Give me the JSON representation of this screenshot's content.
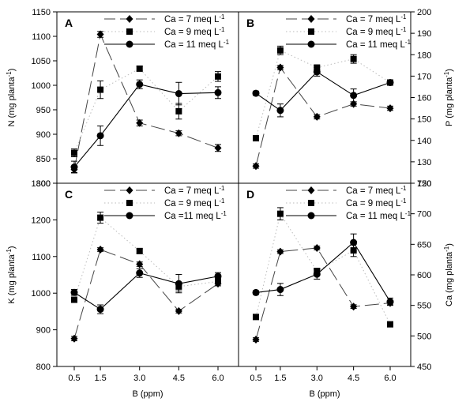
{
  "chart_data": [
    {
      "type": "line",
      "panel_label": "A",
      "ylabel": "N (mg planta-1)",
      "ylabel_parts": [
        "N (mg planta",
        "-1",
        ")"
      ],
      "ylim": [
        800,
        1150
      ],
      "yticks": [
        800,
        850,
        900,
        950,
        1000,
        1050,
        1100,
        1150
      ],
      "x": [
        0.5,
        1.5,
        3.0,
        4.5,
        6.0
      ],
      "series": [
        {
          "name": "Ca = 7 meq L-1",
          "name_parts": [
            "Ca = 7 meq L",
            "-1"
          ],
          "values": [
            828,
            1104,
            923,
            902,
            872
          ],
          "errors": [
            6,
            6,
            6,
            5,
            7
          ]
        },
        {
          "name": "Ca = 9 meq L-1",
          "name_parts": [
            "Ca = 9 meq L",
            "-1"
          ],
          "values": [
            862,
            991,
            1034,
            947,
            1018
          ],
          "errors": [
            8,
            18,
            5,
            16,
            10
          ]
        },
        {
          "name": "Ca = 11 meq L-1",
          "name_parts": [
            "Ca = 11 meq L",
            "-1"
          ],
          "values": [
            833,
            897,
            1002,
            983,
            985
          ],
          "errors": [
            12,
            20,
            9,
            23,
            12
          ]
        }
      ]
    },
    {
      "type": "line",
      "panel_label": "B",
      "ylabel": "P (mg planta-1)",
      "ylabel_parts": [
        "P (mg planta",
        "-1",
        ")"
      ],
      "ylim": [
        120,
        200
      ],
      "yticks": [
        120,
        130,
        140,
        150,
        160,
        170,
        180,
        190,
        200
      ],
      "x": [
        0.5,
        1.5,
        3.0,
        4.5,
        6.0
      ],
      "series": [
        {
          "name": "Ca = 7 meq L-1",
          "name_parts": [
            "Ca = 7 meq L",
            "-1"
          ],
          "values": [
            128,
            174,
            151,
            157,
            155
          ],
          "errors": [
            1,
            1,
            1,
            1,
            1
          ]
        },
        {
          "name": "Ca = 9 meq L-1",
          "name_parts": [
            "Ca = 9 meq L",
            "-1"
          ],
          "values": [
            141,
            182,
            174,
            178,
            167
          ],
          "errors": [
            1,
            2,
            1,
            2,
            1
          ]
        },
        {
          "name": "Ca = 11 meq L-1",
          "name_parts": [
            "Ca = 11 meq L",
            "-1"
          ],
          "values": [
            162,
            154,
            172,
            161,
            167
          ],
          "errors": [
            1,
            3,
            2,
            3,
            1
          ]
        }
      ]
    },
    {
      "type": "line",
      "panel_label": "C",
      "ylabel": "K (mg planta-1)",
      "ylabel_parts": [
        "K (mg planta",
        "-1",
        ")"
      ],
      "ylim": [
        800,
        1300
      ],
      "yticks": [
        800,
        900,
        1000,
        1100,
        1200,
        1300
      ],
      "x": [
        0.5,
        1.5,
        3.0,
        4.5,
        6.0
      ],
      "series": [
        {
          "name": "Ca = 7 meq L-1",
          "name_parts": [
            "Ca = 7 meq L",
            "-1"
          ],
          "values": [
            876,
            1119,
            1079,
            951,
            1026
          ],
          "errors": [
            6,
            5,
            6,
            5,
            6
          ]
        },
        {
          "name": "Ca = 9 meq L-1",
          "name_parts": [
            "Ca = 9 meq L",
            "-1"
          ],
          "values": [
            982,
            1206,
            1115,
            1018,
            1032
          ],
          "errors": [
            6,
            15,
            6,
            12,
            6
          ]
        },
        {
          "name": "Ca =11 meq L-1",
          "name_parts": [
            "Ca =11 meq L",
            "-1"
          ],
          "values": [
            1002,
            956,
            1055,
            1026,
            1046
          ],
          "errors": [
            8,
            12,
            12,
            25,
            10
          ]
        }
      ]
    },
    {
      "type": "line",
      "panel_label": "D",
      "ylabel": "Ca (mg planta-1)",
      "ylabel_parts": [
        "Ca (mg planta",
        "-1",
        ")"
      ],
      "ylim": [
        450,
        750
      ],
      "yticks": [
        450,
        500,
        550,
        600,
        650,
        700,
        750
      ],
      "x": [
        0.5,
        1.5,
        3.0,
        4.5,
        6.0
      ],
      "series": [
        {
          "name": "Ca = 7 meq L-1",
          "name_parts": [
            "Ca = 7 meq L",
            "-1"
          ],
          "values": [
            494,
            638,
            644,
            548,
            554
          ],
          "errors": [
            3,
            3,
            3,
            3,
            3
          ]
        },
        {
          "name": "Ca = 9 meq L-1",
          "name_parts": [
            "Ca = 9 meq L",
            "-1"
          ],
          "values": [
            531,
            700,
            606,
            640,
            519
          ],
          "errors": [
            4,
            10,
            5,
            10,
            3
          ]
        },
        {
          "name": "Ca = 11 meq L-1",
          "name_parts": [
            "Ca = 11 meq L",
            "-1"
          ],
          "values": [
            571,
            576,
            601,
            653,
            556
          ],
          "errors": [
            3,
            10,
            8,
            14,
            6
          ]
        }
      ]
    }
  ],
  "xaxis": {
    "label": "B (ppm)",
    "ticks": [
      0.5,
      1.5,
      3.0,
      4.5,
      6.0
    ],
    "tick_labels": [
      "0.5",
      "1.5",
      "3.0",
      "4.5",
      "6.0"
    ]
  }
}
